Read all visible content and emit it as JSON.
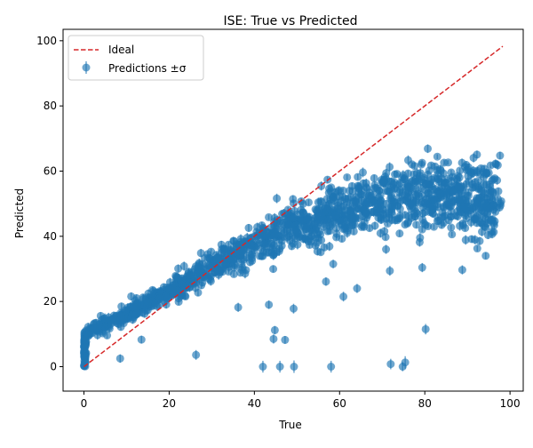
{
  "chart_data": {
    "type": "scatter",
    "title": "ISE: True vs Predicted",
    "xlabel": "True",
    "ylabel": "Predicted",
    "xlim": [
      -4.9,
      103.1
    ],
    "ylim": [
      -7.5,
      103.5
    ],
    "xticks": [
      0,
      20,
      40,
      60,
      80,
      100
    ],
    "yticks": [
      0,
      20,
      40,
      60,
      80,
      100
    ],
    "grid": false,
    "legend": {
      "placement": "top-left",
      "entries": [
        {
          "label": "Ideal",
          "kind": "line",
          "color": "#d62728"
        },
        {
          "label": "Predictions ±σ",
          "kind": "marker",
          "color": "#1f77b4"
        }
      ]
    },
    "ideal_line": {
      "name": "Ideal",
      "x": [
        0,
        98.3
      ],
      "y": [
        0,
        98.3
      ],
      "color": "#d62728",
      "style": "dashed"
    },
    "series": [
      {
        "name": "Predictions ±σ",
        "color": "#1f77b4",
        "alpha": 0.65,
        "trend": {
          "x": [
            0,
            2,
            5,
            10,
            15,
            20,
            25,
            30,
            35,
            40,
            45,
            50,
            55,
            60,
            65,
            70,
            75,
            80,
            85,
            90,
            95,
            98
          ],
          "y": [
            10,
            11,
            13,
            16,
            19.5,
            23,
            27,
            30.5,
            34,
            37.5,
            40.5,
            43,
            45.5,
            47.5,
            49.5,
            51,
            52.5,
            53,
            52.5,
            51.5,
            50.5,
            50
          ]
        },
        "outliers": [
          {
            "x": 8.5,
            "y": 2.5,
            "err": 1.3
          },
          {
            "x": 13.5,
            "y": 8.3,
            "err": 1.2
          },
          {
            "x": 26.3,
            "y": 3.6,
            "err": 1.5
          },
          {
            "x": 36.2,
            "y": 18.2,
            "err": 1.4
          },
          {
            "x": 42.0,
            "y": 0.0,
            "err": 1.8
          },
          {
            "x": 43.4,
            "y": 19.0,
            "err": 1.3
          },
          {
            "x": 44.5,
            "y": 8.5,
            "err": 1.4
          },
          {
            "x": 44.8,
            "y": 11.2,
            "err": 1.3
          },
          {
            "x": 46.0,
            "y": 0.0,
            "err": 1.8
          },
          {
            "x": 47.2,
            "y": 8.2,
            "err": 1.2
          },
          {
            "x": 49.3,
            "y": 0.0,
            "err": 1.9
          },
          {
            "x": 49.2,
            "y": 17.8,
            "err": 1.5
          },
          {
            "x": 58.0,
            "y": 0.0,
            "err": 1.8
          },
          {
            "x": 56.8,
            "y": 26.1,
            "err": 1.3
          },
          {
            "x": 60.9,
            "y": 21.5,
            "err": 1.5
          },
          {
            "x": 64.1,
            "y": 24.0,
            "err": 1.4
          },
          {
            "x": 72.0,
            "y": 0.8,
            "err": 1.6
          },
          {
            "x": 74.8,
            "y": 0.0,
            "err": 1.4
          },
          {
            "x": 75.4,
            "y": 1.3,
            "err": 1.9
          },
          {
            "x": 71.8,
            "y": 29.4,
            "err": 1.5
          },
          {
            "x": 79.4,
            "y": 30.4,
            "err": 1.4
          },
          {
            "x": 80.2,
            "y": 11.5,
            "err": 1.6
          },
          {
            "x": 88.8,
            "y": 29.7,
            "err": 1.4
          },
          {
            "x": 58.5,
            "y": 31.5,
            "err": 1.3
          },
          {
            "x": 54.8,
            "y": 35.4,
            "err": 1.3
          },
          {
            "x": 70.9,
            "y": 36.0,
            "err": 1.4
          },
          {
            "x": 78.8,
            "y": 38.2,
            "err": 1.4
          }
        ]
      }
    ]
  }
}
